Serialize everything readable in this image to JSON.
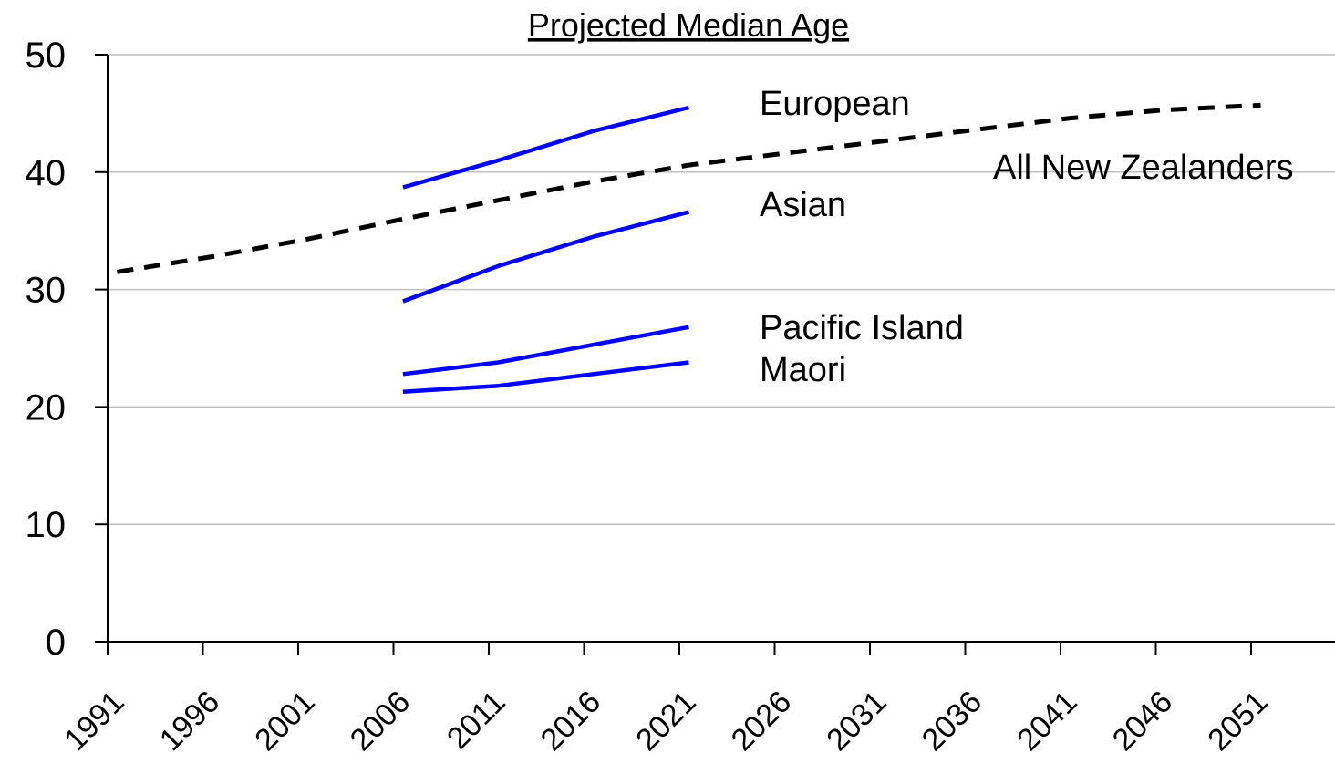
{
  "chart_data": {
    "type": "line",
    "title": "Projected Median Age",
    "xlabel": "",
    "ylabel": "",
    "x_categories": [
      "1991",
      "1996",
      "2001",
      "2006",
      "2011",
      "2016",
      "2021",
      "2026",
      "2031",
      "2036",
      "2041",
      "2046",
      "2051"
    ],
    "ylim": [
      0,
      50
    ],
    "yticks": [
      0,
      10,
      20,
      30,
      40,
      50
    ],
    "grid": true,
    "series": [
      {
        "name": "All New Zealanders",
        "style": "dashed",
        "color": "#000000",
        "x": [
          1991.5,
          1996.5,
          2001.5,
          2006.5,
          2011.5,
          2016.5,
          2021.5,
          2026.5,
          2031.5,
          2036.5,
          2041.5,
          2046.5,
          2051.5
        ],
        "y": [
          31.5,
          32.8,
          34.3,
          36.0,
          37.6,
          39.2,
          40.6,
          41.6,
          42.6,
          43.6,
          44.6,
          45.3,
          45.7
        ]
      },
      {
        "name": "European",
        "style": "solid",
        "color": "#0000ff",
        "x": [
          2006.5,
          2011.5,
          2016.5,
          2021.5
        ],
        "y": [
          38.7,
          41.0,
          43.5,
          45.5
        ]
      },
      {
        "name": "Asian",
        "style": "solid",
        "color": "#0000ff",
        "x": [
          2006.5,
          2011.5,
          2016.5,
          2021.5
        ],
        "y": [
          29.0,
          32.0,
          34.5,
          36.6
        ]
      },
      {
        "name": "Pacific Island",
        "style": "solid",
        "color": "#0000ff",
        "x": [
          2006.5,
          2011.5,
          2016.5,
          2021.5
        ],
        "y": [
          22.8,
          23.8,
          25.3,
          26.8
        ]
      },
      {
        "name": "Maori",
        "style": "solid",
        "color": "#0000ff",
        "x": [
          2006.5,
          2011.5,
          2016.5,
          2021.5
        ],
        "y": [
          21.3,
          21.8,
          22.8,
          23.8
        ]
      }
    ]
  }
}
